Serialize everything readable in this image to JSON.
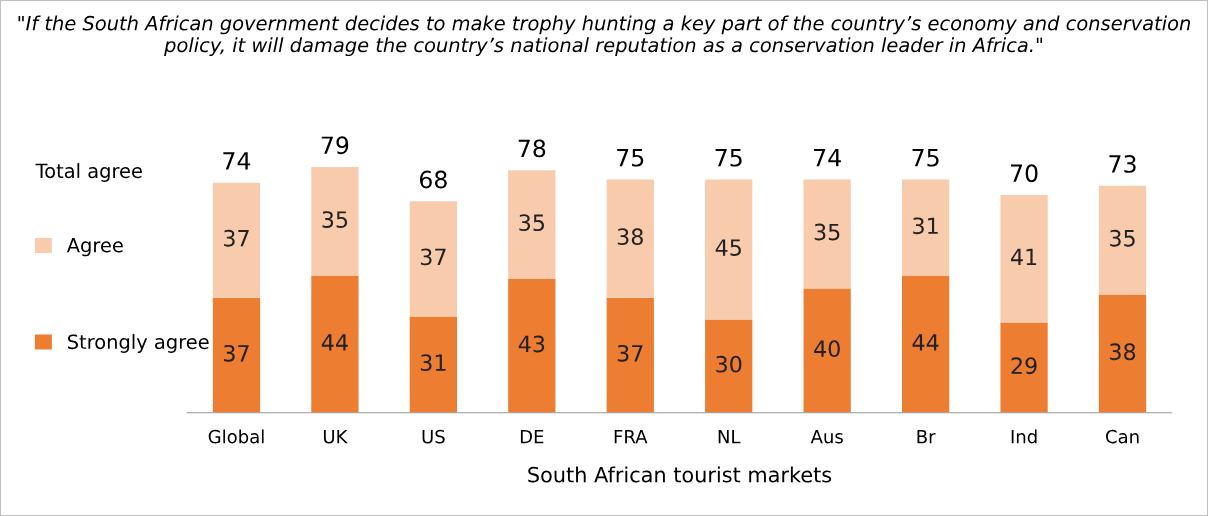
{
  "chart_data": {
    "type": "bar",
    "stacked": true,
    "title": "\"If the South African government decides to make trophy hunting a key part of the country’s economy and conservation policy, it will damage the country’s national reputation as a conservation leader in Africa.\"",
    "xlabel": "South African tourist markets",
    "legend_title": "Total agree",
    "categories": [
      "Global",
      "UK",
      "US",
      "DE",
      "FRA",
      "NL",
      "Aus",
      "Br",
      "Ind",
      "Can"
    ],
    "series": [
      {
        "name": "Strongly agree",
        "color": "#ed7d31",
        "values": [
          37,
          44,
          31,
          43,
          37,
          30,
          40,
          44,
          29,
          38
        ]
      },
      {
        "name": "Agree",
        "color": "#f8cbad",
        "values": [
          37,
          35,
          37,
          35,
          38,
          45,
          35,
          31,
          41,
          35
        ]
      }
    ],
    "totals": [
      "74",
      "79",
      "68",
      "78",
      "75",
      "75",
      "74",
      "75",
      "70",
      "73"
    ],
    "data_labels": true,
    "legend": "left",
    "grid": false
  }
}
